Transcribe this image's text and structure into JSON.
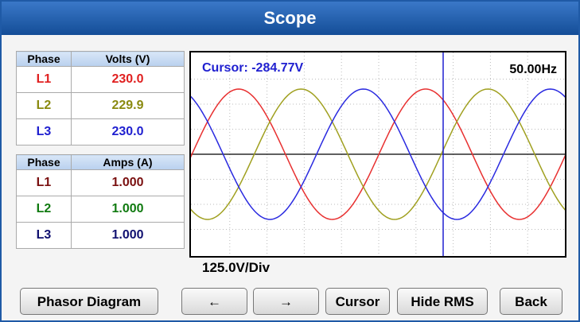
{
  "header": {
    "title": "Scope"
  },
  "volts_table": {
    "headers": [
      "Phase",
      "Volts (V)"
    ],
    "rows": [
      [
        "L1",
        "230.0"
      ],
      [
        "L2",
        "229.9"
      ],
      [
        "L3",
        "230.0"
      ]
    ]
  },
  "amps_table": {
    "headers": [
      "Phase",
      "Amps (A)"
    ],
    "rows": [
      [
        "L1",
        "1.000"
      ],
      [
        "L2",
        "1.000"
      ],
      [
        "L3",
        "1.000"
      ]
    ]
  },
  "scope": {
    "cursor_label": "Cursor: -284.77V",
    "frequency": "50.00Hz",
    "scale": "125.0V/Div"
  },
  "buttons": [
    "Phasor Diagram",
    "←",
    "→",
    "Cursor",
    "Hide RMS",
    "Back"
  ]
}
